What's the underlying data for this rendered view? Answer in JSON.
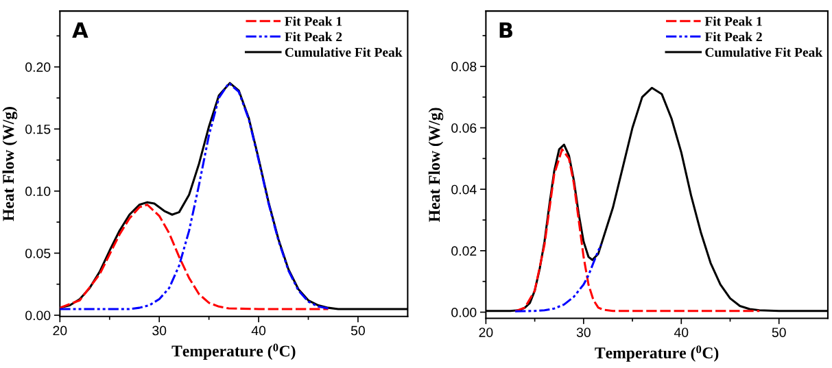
{
  "chart_data": [
    {
      "type": "line",
      "annotations": [
        "A"
      ],
      "xlabel": "Temperature ($^{0}$C)",
      "ylabel": "Heat Flow (W/g)",
      "xlim": [
        20,
        55
      ],
      "ylim": [
        -0.001,
        0.245
      ],
      "xticks": [
        20,
        {
          "value": 25,
          "label": null
        },
        30,
        {
          "value": 35,
          "label": null
        },
        40,
        {
          "value": 45,
          "label": null
        },
        50
      ],
      "yticks": [
        {
          "value": 0,
          "label": "0.00"
        },
        {
          "value": 0.025,
          "label": null
        },
        {
          "value": 0.05,
          "label": "0.05"
        },
        {
          "value": 0.075,
          "label": null
        },
        {
          "value": 0.1,
          "label": "0.10"
        },
        {
          "value": 0.125,
          "label": null
        },
        {
          "value": 0.15,
          "label": "0.15"
        },
        {
          "value": 0.175,
          "label": null
        },
        {
          "value": 0.2,
          "label": "0.20"
        },
        {
          "value": 0.225,
          "label": null
        }
      ],
      "legend": "top right",
      "grid": false,
      "marker": "none",
      "series": [
        {
          "name": "Fit Peak 1",
          "color": "#ff0000",
          "line_style": "dashed",
          "x": [
            20,
            22,
            24,
            26,
            27,
            28,
            28.8,
            30,
            31,
            32,
            33,
            34,
            35,
            36,
            37,
            40,
            47
          ],
          "values": [
            0.006,
            0.012,
            0.033,
            0.065,
            0.078,
            0.087,
            0.089,
            0.08,
            0.066,
            0.047,
            0.03,
            0.017,
            0.01,
            0.007,
            0.0055,
            0.005,
            0.005
          ]
        },
        {
          "name": "Fit Peak 2",
          "color": "#0000ff",
          "line_style": "dashdot",
          "x": [
            20,
            27,
            28,
            29,
            30,
            31,
            32,
            33,
            34,
            35,
            36,
            37,
            38,
            39,
            40,
            41,
            42,
            43,
            44,
            45,
            46,
            47
          ],
          "values": [
            0.005,
            0.005,
            0.006,
            0.008,
            0.013,
            0.022,
            0.04,
            0.068,
            0.105,
            0.145,
            0.175,
            0.187,
            0.18,
            0.158,
            0.125,
            0.09,
            0.06,
            0.036,
            0.02,
            0.011,
            0.007,
            0.0055
          ]
        },
        {
          "name": "Cumulative Fit Peak",
          "color": "#000000",
          "line_style": "solid",
          "x": [
            20,
            21,
            22,
            23,
            24,
            25,
            26,
            27,
            28,
            28.8,
            29.5,
            30.5,
            31.3,
            32,
            33,
            34,
            35,
            36,
            37.1,
            38,
            39,
            40,
            41,
            42,
            43,
            44,
            45,
            46,
            47,
            48,
            55
          ],
          "values": [
            0.006,
            0.008,
            0.013,
            0.022,
            0.035,
            0.052,
            0.068,
            0.081,
            0.089,
            0.091,
            0.09,
            0.084,
            0.081,
            0.083,
            0.097,
            0.122,
            0.152,
            0.177,
            0.187,
            0.181,
            0.159,
            0.126,
            0.091,
            0.061,
            0.037,
            0.021,
            0.012,
            0.008,
            0.006,
            0.005,
            0.005
          ]
        }
      ]
    },
    {
      "type": "line",
      "annotations": [
        "B"
      ],
      "xlabel": "Temperature ($^{0}$C)",
      "ylabel": "Heat Flow (W/g)",
      "xlim": [
        20,
        55
      ],
      "ylim": [
        -0.002,
        0.098
      ],
      "xticks": [
        20,
        {
          "value": 25,
          "label": null
        },
        30,
        {
          "value": 35,
          "label": null
        },
        40,
        {
          "value": 45,
          "label": null
        },
        50
      ],
      "yticks": [
        {
          "value": 0,
          "label": "0.00"
        },
        {
          "value": 0.01,
          "label": null
        },
        {
          "value": 0.02,
          "label": "0.02"
        },
        {
          "value": 0.03,
          "label": null
        },
        {
          "value": 0.04,
          "label": "0.04"
        },
        {
          "value": 0.05,
          "label": null
        },
        {
          "value": 0.06,
          "label": "0.06"
        },
        {
          "value": 0.07,
          "label": null
        },
        {
          "value": 0.08,
          "label": "0.08"
        },
        {
          "value": 0.09,
          "label": null
        }
      ],
      "legend": "top right",
      "grid": false,
      "marker": "none",
      "series": [
        {
          "name": "Fit Peak 1",
          "color": "#ff0000",
          "line_style": "dashed",
          "x": [
            23,
            24,
            25,
            26,
            27,
            27.8,
            28.5,
            29,
            29.5,
            30,
            30.5,
            31,
            31.5,
            32,
            33,
            48
          ],
          "values": [
            0.0003,
            0.0015,
            0.007,
            0.022,
            0.045,
            0.053,
            0.05,
            0.042,
            0.03,
            0.018,
            0.009,
            0.004,
            0.0015,
            0.0008,
            0.0004,
            0.0004
          ]
        },
        {
          "name": "Fit Peak 2",
          "color": "#0000ff",
          "line_style": "dashdot",
          "x": [
            23,
            25,
            26,
            27,
            28,
            29,
            30,
            30.5,
            31,
            31.5,
            31.8
          ],
          "values": [
            0.0003,
            0.0004,
            0.0006,
            0.0012,
            0.0025,
            0.005,
            0.009,
            0.012,
            0.016,
            0.02,
            0.022
          ]
        },
        {
          "name": "Cumulative Fit Peak",
          "color": "#000000",
          "line_style": "solid",
          "x": [
            20,
            22.5,
            23.5,
            24,
            24.5,
            25,
            25.5,
            26,
            26.5,
            27,
            27.5,
            28,
            28.5,
            29,
            29.5,
            30,
            30.5,
            30.9,
            31.5,
            32,
            33,
            34,
            35,
            36,
            37,
            38,
            39,
            40,
            41,
            42,
            43,
            44,
            45,
            46,
            47,
            48,
            50,
            55
          ],
          "values": [
            0.0004,
            0.0004,
            0.0007,
            0.0015,
            0.003,
            0.007,
            0.014,
            0.023,
            0.035,
            0.046,
            0.053,
            0.0545,
            0.051,
            0.043,
            0.032,
            0.023,
            0.018,
            0.017,
            0.019,
            0.024,
            0.034,
            0.047,
            0.06,
            0.07,
            0.073,
            0.071,
            0.063,
            0.052,
            0.038,
            0.026,
            0.016,
            0.009,
            0.0045,
            0.002,
            0.001,
            0.0006,
            0.0004,
            0.0004
          ]
        }
      ]
    }
  ]
}
